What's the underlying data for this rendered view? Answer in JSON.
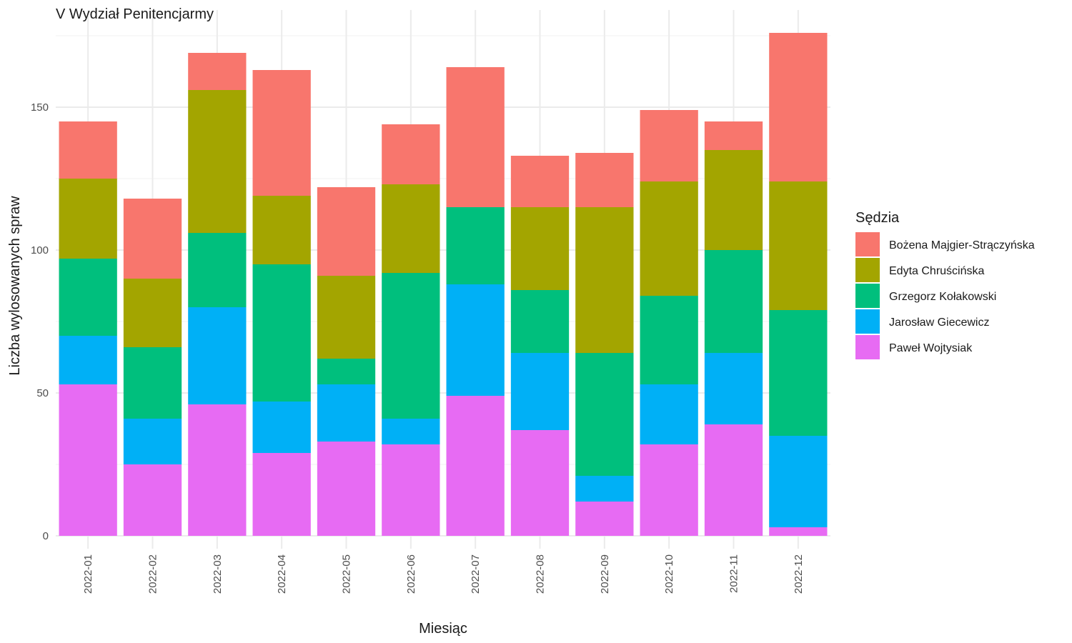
{
  "chart_data": {
    "type": "bar",
    "stacked": true,
    "title": "V Wydział Penitencjarmy",
    "xlabel": "Miesiąc",
    "ylabel": "Liczba wylosowanych spraw",
    "ylim": [
      0,
      182
    ],
    "yticks": [
      "0",
      "50",
      "100",
      "150"
    ],
    "grid": true,
    "legend_title": "Sędzia",
    "legend_position": "right",
    "categories": [
      "2022-01",
      "2022-02",
      "2022-03",
      "2022-04",
      "2022-05",
      "2022-06",
      "2022-07",
      "2022-08",
      "2022-09",
      "2022-10",
      "2022-11",
      "2022-12"
    ],
    "series": [
      {
        "name": "Paweł Wojtysiak",
        "color": "#E76BF3",
        "values": [
          53,
          25,
          46,
          29,
          33,
          32,
          49,
          37,
          12,
          32,
          39,
          3
        ]
      },
      {
        "name": "Jarosław Giecewicz",
        "color": "#00B0F6",
        "values": [
          17,
          16,
          34,
          18,
          20,
          9,
          39,
          27,
          9,
          21,
          25,
          32
        ]
      },
      {
        "name": "Grzegorz Kołakowski",
        "color": "#00BF7D",
        "values": [
          27,
          25,
          26,
          48,
          9,
          51,
          27,
          22,
          43,
          31,
          36,
          44
        ]
      },
      {
        "name": "Edyta Chruścińska",
        "color": "#A3A500",
        "values": [
          28,
          24,
          50,
          24,
          29,
          31,
          0,
          29,
          51,
          40,
          35,
          45
        ]
      },
      {
        "name": "Bożena Majgier-Strączyńska",
        "color": "#F8766D",
        "values": [
          20,
          28,
          13,
          44,
          31,
          21,
          49,
          18,
          19,
          25,
          10,
          52
        ]
      }
    ],
    "legend_order": [
      "Bożena Majgier-Strączyńska",
      "Edyta Chruścińska",
      "Grzegorz Kołakowski",
      "Jarosław Giecewicz",
      "Paweł Wojtysiak"
    ]
  }
}
